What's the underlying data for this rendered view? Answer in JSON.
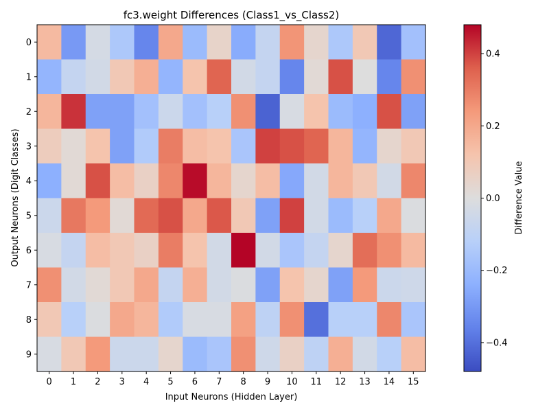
{
  "chart_data": {
    "type": "heatmap",
    "title": "fc3.weight Differences (Class1_vs_Class2)",
    "xlabel": "Input Neurons (Hidden Layer)",
    "ylabel": "Output Neurons (Digit Classes)",
    "colorbar_label": "Difference Value",
    "colormap": "coolwarm",
    "vmin": -0.48,
    "vmax": 0.48,
    "x_ticks": [
      "0",
      "1",
      "2",
      "3",
      "4",
      "5",
      "6",
      "7",
      "8",
      "9",
      "10",
      "11",
      "12",
      "13",
      "14",
      "15"
    ],
    "y_ticks": [
      "0",
      "1",
      "2",
      "3",
      "4",
      "5",
      "6",
      "7",
      "8",
      "9"
    ],
    "colorbar_ticks": [
      "-0.4",
      "-0.2",
      "0.0",
      "0.2",
      "0.4"
    ],
    "colorbar_tick_values": [
      -0.4,
      -0.2,
      0.0,
      0.2,
      0.4
    ],
    "values": [
      [
        0.15,
        -0.3,
        -0.03,
        -0.15,
        -0.35,
        0.2,
        -0.2,
        0.05,
        -0.25,
        -0.08,
        0.25,
        0.04,
        -0.15,
        0.1,
        -0.42,
        -0.18
      ],
      [
        -0.22,
        -0.08,
        -0.04,
        0.1,
        0.18,
        -0.22,
        0.12,
        0.35,
        -0.04,
        -0.08,
        -0.35,
        0.02,
        0.38,
        0.0,
        -0.35,
        0.26
      ],
      [
        0.16,
        0.42,
        -0.28,
        -0.28,
        -0.18,
        -0.06,
        -0.18,
        -0.12,
        0.26,
        -0.43,
        -0.02,
        0.12,
        -0.2,
        -0.24,
        0.38,
        -0.28
      ],
      [
        0.08,
        0.02,
        0.12,
        -0.28,
        -0.14,
        0.3,
        0.14,
        0.12,
        -0.16,
        0.4,
        0.38,
        0.35,
        0.16,
        -0.22,
        0.04,
        0.1
      ],
      [
        -0.24,
        0.02,
        0.38,
        0.14,
        0.06,
        0.28,
        0.47,
        0.16,
        0.04,
        0.14,
        -0.26,
        -0.04,
        0.16,
        0.1,
        -0.04,
        0.28
      ],
      [
        -0.06,
        0.31,
        0.24,
        0.02,
        0.34,
        0.38,
        0.2,
        0.37,
        0.1,
        -0.28,
        0.4,
        -0.04,
        -0.2,
        -0.12,
        0.2,
        -0.01
      ],
      [
        -0.02,
        -0.08,
        0.14,
        0.1,
        0.06,
        0.3,
        0.12,
        -0.04,
        0.48,
        -0.04,
        -0.16,
        -0.08,
        0.04,
        0.33,
        0.26,
        0.15
      ],
      [
        0.26,
        -0.04,
        0.02,
        0.1,
        0.2,
        -0.08,
        0.18,
        -0.04,
        -0.01,
        -0.28,
        0.12,
        0.04,
        -0.28,
        0.24,
        -0.06,
        -0.05
      ],
      [
        0.1,
        -0.12,
        -0.01,
        0.2,
        0.16,
        -0.14,
        -0.02,
        -0.02,
        0.22,
        -0.1,
        0.26,
        -0.4,
        -0.12,
        -0.12,
        0.28,
        -0.16
      ],
      [
        -0.02,
        0.1,
        0.24,
        -0.06,
        -0.06,
        0.04,
        -0.2,
        -0.16,
        0.26,
        -0.05,
        0.06,
        -0.1,
        0.18,
        -0.04,
        -0.12,
        0.14
      ]
    ]
  }
}
